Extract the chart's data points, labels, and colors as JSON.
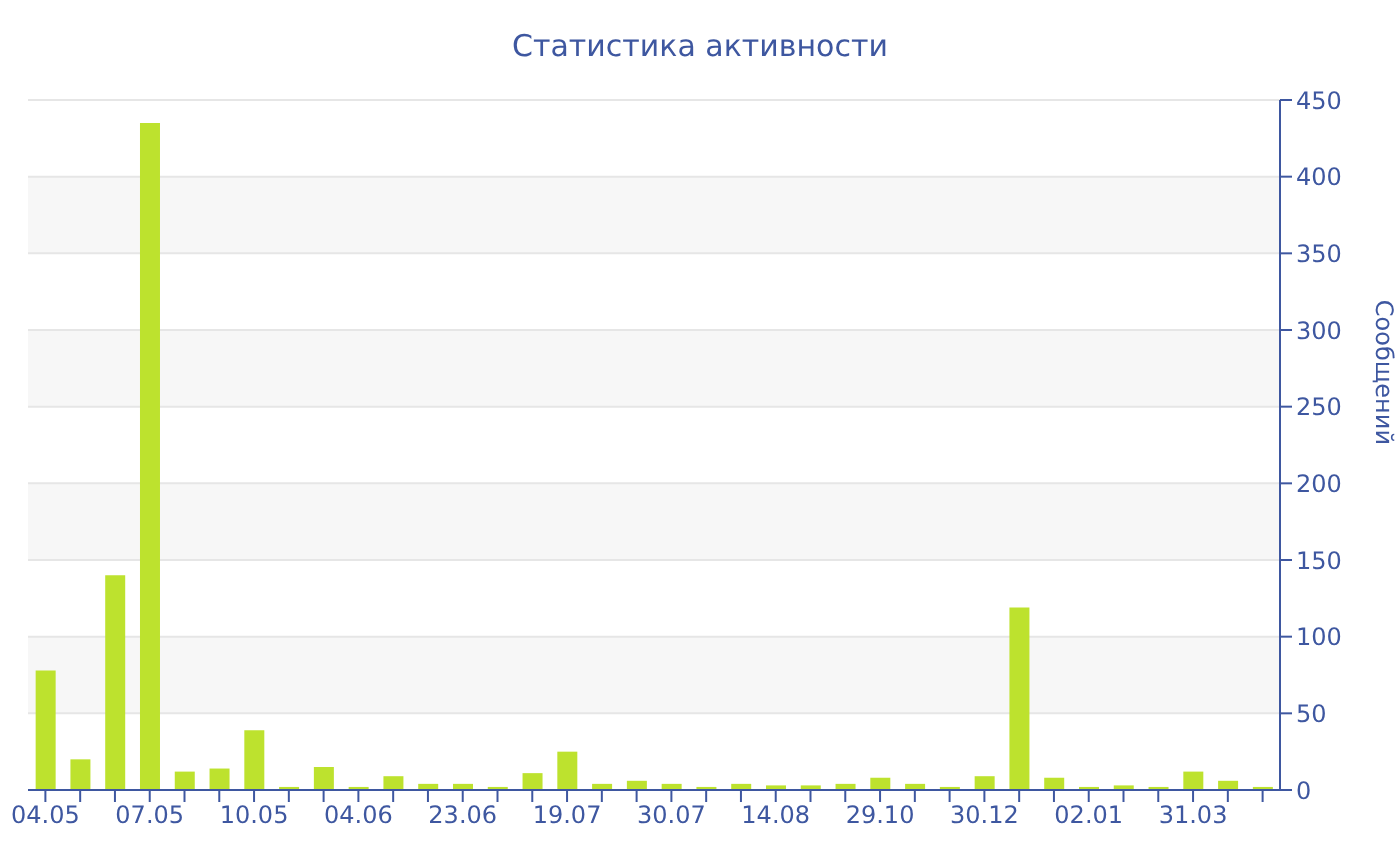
{
  "chart_data": {
    "type": "bar",
    "title": "Статистика активности",
    "y2label": "Сообщений",
    "categories": [
      "04.05",
      null,
      null,
      "07.05",
      null,
      null,
      "10.05",
      null,
      null,
      "04.06",
      null,
      null,
      "23.06",
      null,
      null,
      "19.07",
      null,
      null,
      "30.07",
      null,
      null,
      "14.08",
      null,
      null,
      "29.10",
      null,
      null,
      "30.12",
      null,
      null,
      "02.01",
      null,
      null,
      "31.03",
      null,
      null
    ],
    "series": [
      {
        "color": "#bde22e",
        "axis": "y2",
        "values": [
          78,
          20,
          140,
          435,
          12,
          14,
          39,
          2,
          15,
          2,
          9,
          4,
          4,
          2,
          11,
          25,
          4,
          6,
          4,
          2,
          4,
          3,
          3,
          4,
          8,
          4,
          2,
          9,
          119,
          8,
          2,
          3,
          2,
          12,
          6,
          2
        ]
      }
    ],
    "y2lim": [
      0,
      450
    ],
    "y2ticks": [
      0,
      50,
      100,
      150,
      200,
      250,
      300,
      350,
      400,
      450
    ],
    "grid": "y",
    "legend": false
  }
}
